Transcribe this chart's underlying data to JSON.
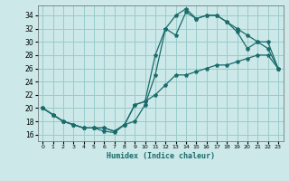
{
  "xlabel": "Humidex (Indice chaleur)",
  "ylabel": "",
  "bg_color": "#cce8e8",
  "grid_color": "#99cccc",
  "line_color": "#1a6b6b",
  "xlim": [
    -0.5,
    23.5
  ],
  "ylim": [
    15.0,
    35.5
  ],
  "xticks": [
    0,
    1,
    2,
    3,
    4,
    5,
    6,
    7,
    8,
    9,
    10,
    11,
    12,
    13,
    14,
    15,
    16,
    17,
    18,
    19,
    20,
    21,
    22,
    23
  ],
  "yticks": [
    16,
    18,
    20,
    22,
    24,
    26,
    28,
    30,
    32,
    34
  ],
  "curve1_x": [
    0,
    1,
    2,
    3,
    4,
    5,
    6,
    7,
    8,
    9,
    10,
    11,
    12,
    13,
    14,
    15,
    16,
    17,
    18,
    19,
    20,
    21,
    22,
    23
  ],
  "curve1_y": [
    20,
    19,
    18,
    17.5,
    17,
    17,
    16.5,
    16.3,
    17.5,
    18,
    20.5,
    25,
    32,
    31,
    34.5,
    33.5,
    34,
    34,
    33,
    31.5,
    29,
    30,
    30,
    26
  ],
  "curve2_x": [
    0,
    1,
    2,
    3,
    4,
    5,
    6,
    7,
    8,
    9,
    10,
    11,
    12,
    13,
    14,
    15,
    16,
    17,
    18,
    19,
    20,
    21,
    22,
    23
  ],
  "curve2_y": [
    20,
    19,
    18,
    17.5,
    17,
    17,
    17,
    16.5,
    17.5,
    20.5,
    21,
    22,
    23.5,
    25,
    25,
    25.5,
    26,
    26.5,
    26.5,
    27,
    27.5,
    28,
    28,
    26
  ],
  "curve3_x": [
    0,
    1,
    2,
    3,
    4,
    5,
    6,
    7,
    8,
    9,
    10,
    11,
    12,
    13,
    14,
    15,
    16,
    17,
    18,
    19,
    20,
    21,
    22,
    23
  ],
  "curve3_y": [
    20,
    19,
    18,
    17.5,
    17,
    17,
    17,
    16.5,
    17.5,
    20.5,
    21,
    28,
    32,
    34,
    35,
    33.5,
    34,
    34,
    33,
    32,
    31,
    30,
    29,
    26
  ]
}
